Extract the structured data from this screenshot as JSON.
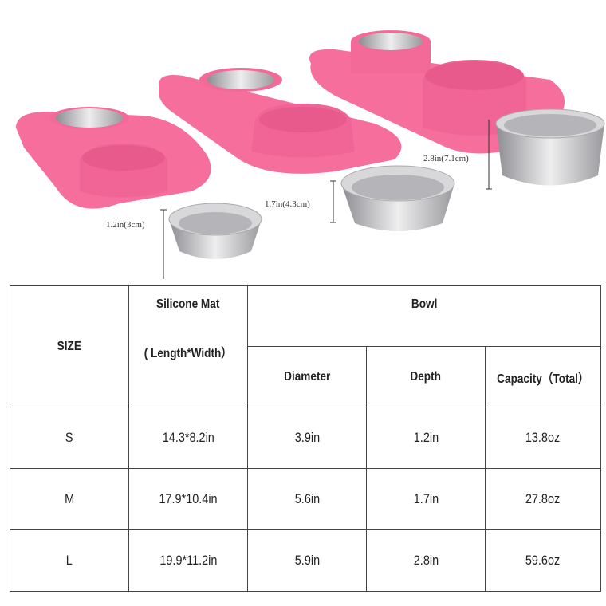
{
  "colors": {
    "mat": "#f56e9c",
    "bowl": "#c9c9cc",
    "border": "#444444"
  },
  "dimensions": [
    {
      "size": "S",
      "label": "1.2in(3cm)"
    },
    {
      "size": "M",
      "label": "1.7in(4.3cm)"
    },
    {
      "size": "L",
      "label": "2.8in(7.1cm)"
    }
  ],
  "table": {
    "headers": {
      "size": "SIZE",
      "mat_top": "Silicone Mat",
      "mat_bottom": "( Length*Width）",
      "bowl": "Bowl",
      "diameter": "Diameter",
      "depth": "Depth",
      "capacity": "Capacity（Total）"
    },
    "rows": [
      {
        "size": "S",
        "mat": "14.3*8.2in",
        "diameter": "3.9in",
        "depth": "1.2in",
        "capacity": "13.8oz"
      },
      {
        "size": "M",
        "mat": "17.9*10.4in",
        "diameter": "5.6in",
        "depth": "1.7in",
        "capacity": "27.8oz"
      },
      {
        "size": "L",
        "mat": "19.9*11.2in",
        "diameter": "5.9in",
        "depth": "2.8in",
        "capacity": "59.6oz"
      }
    ]
  }
}
